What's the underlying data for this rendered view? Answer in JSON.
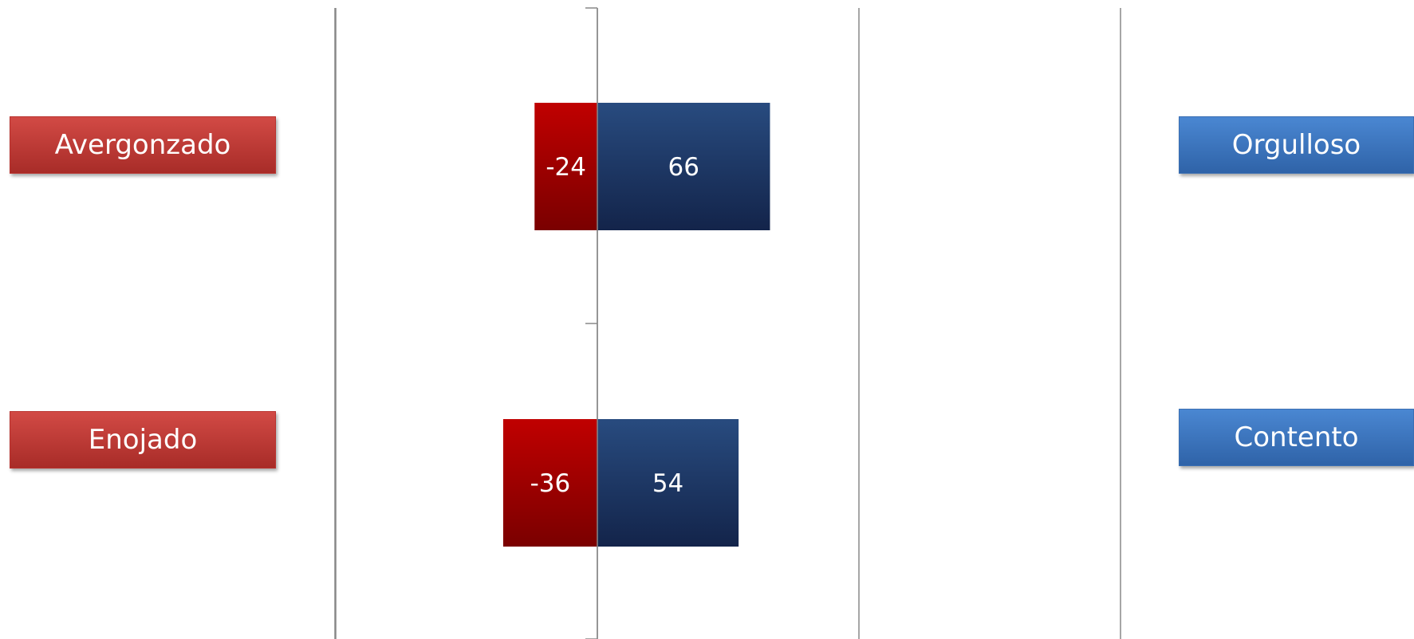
{
  "chart_data": {
    "type": "bar",
    "orientation": "horizontal",
    "stacked": "diverging",
    "xlim": [
      -100,
      100
    ],
    "grid": true,
    "rows": [
      {
        "negative_label": "Avergonzado",
        "positive_label": "Orgulloso",
        "negative_value": -24,
        "positive_value": 66
      },
      {
        "negative_label": "Enojado",
        "positive_label": "Contento",
        "negative_value": -36,
        "positive_value": 54
      }
    ],
    "colors": {
      "negative_bar": "#c00000",
      "negative_bar_dark": "#7a0000",
      "positive_bar": "#284b7f",
      "positive_bar_dark": "#13244a",
      "negative_label_bg": "#c53c38",
      "positive_label_bg": "#3d78c4",
      "gridline": "#888888"
    }
  }
}
